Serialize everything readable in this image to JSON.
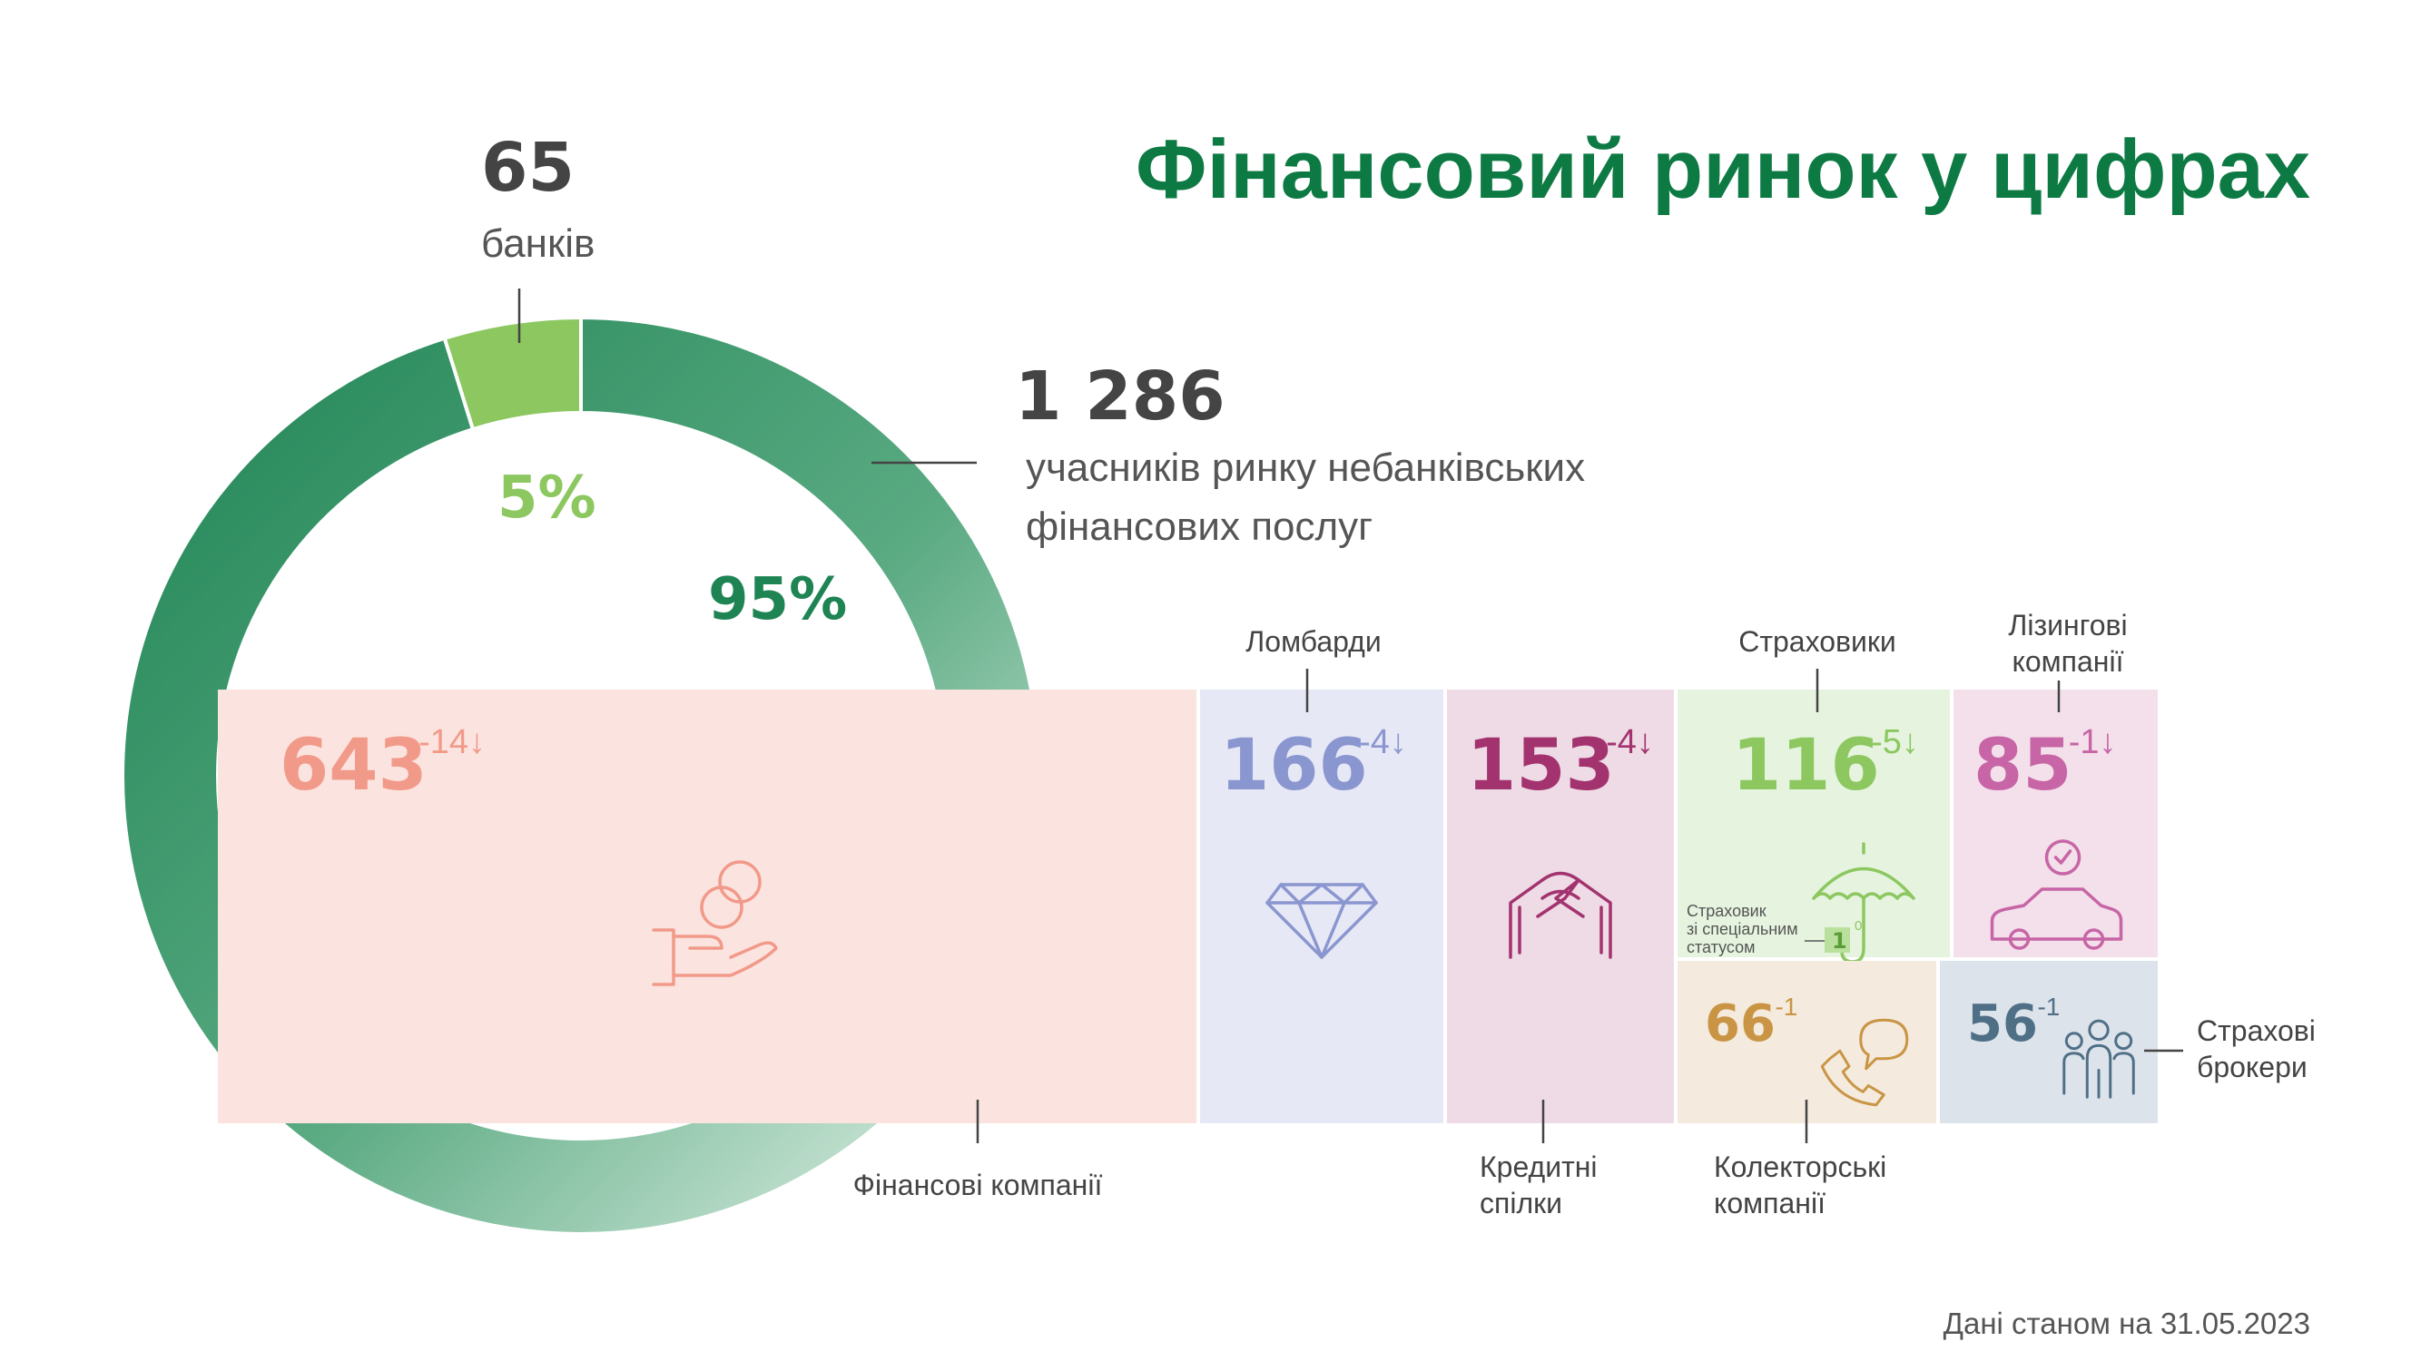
{
  "title": "Фінансовий ринок у цифрах",
  "footer": "Дані станом на 31.05.2023",
  "colors": {
    "dark_green": "#1e8454",
    "light_green": "#8cc760",
    "title_green": "#0d7a44"
  },
  "chart_data": [
    {
      "type": "pie",
      "style": "donut",
      "slices": [
        {
          "value": 65,
          "percent_label": "5%",
          "count_label": "65",
          "label": "банків",
          "color": "#8cc760"
        },
        {
          "value": 1286,
          "percent_label": "95%",
          "count_label": "1 286",
          "label": "учасників ринку небанківських фінансових послуг",
          "color": "#1e8454"
        }
      ]
    },
    {
      "type": "treemap",
      "items": [
        {
          "label": "Фінансові компанії",
          "value": 643,
          "value_label": "643",
          "change": "-14↓",
          "icon": "coins-in-hand-icon",
          "color": "#f29a8a",
          "fill": "#fbe4df"
        },
        {
          "label": "Ломбарди",
          "value": 166,
          "value_label": "166",
          "change": "-4↓",
          "icon": "diamond-icon",
          "color": "#8a96cf",
          "fill": "#e6e8f5"
        },
        {
          "label": "Кредитні спілки",
          "value": 153,
          "value_label": "153",
          "change": "-4↓",
          "icon": "handshake-icon",
          "color": "#a3336f",
          "fill": "#eedbe5"
        },
        {
          "label": "Страховики",
          "value": 116,
          "value_label": "116",
          "change": "-5↓",
          "icon": "umbrella-icon",
          "color": "#8cc760",
          "fill": "#e6f4df",
          "sub_note": {
            "label": "Страховик зі спеціальним статусом",
            "value": "1",
            "change": "0"
          }
        },
        {
          "label": "Лізингові компанії",
          "value": 85,
          "value_label": "85",
          "change": "-1↓",
          "icon": "car-icon",
          "color": "#c765a6",
          "fill": "#f3e0ea"
        },
        {
          "label": "Колекторські компанії",
          "value": 66,
          "value_label": "66",
          "change": "-1",
          "icon": "phone-chat-icon",
          "color": "#c99545",
          "fill": "#f4eadd"
        },
        {
          "label": "Страхові брокери",
          "value": 56,
          "value_label": "56",
          "change": "-1",
          "icon": "people-icon",
          "color": "#4f6f87",
          "fill": "#dde3ea"
        }
      ]
    }
  ]
}
